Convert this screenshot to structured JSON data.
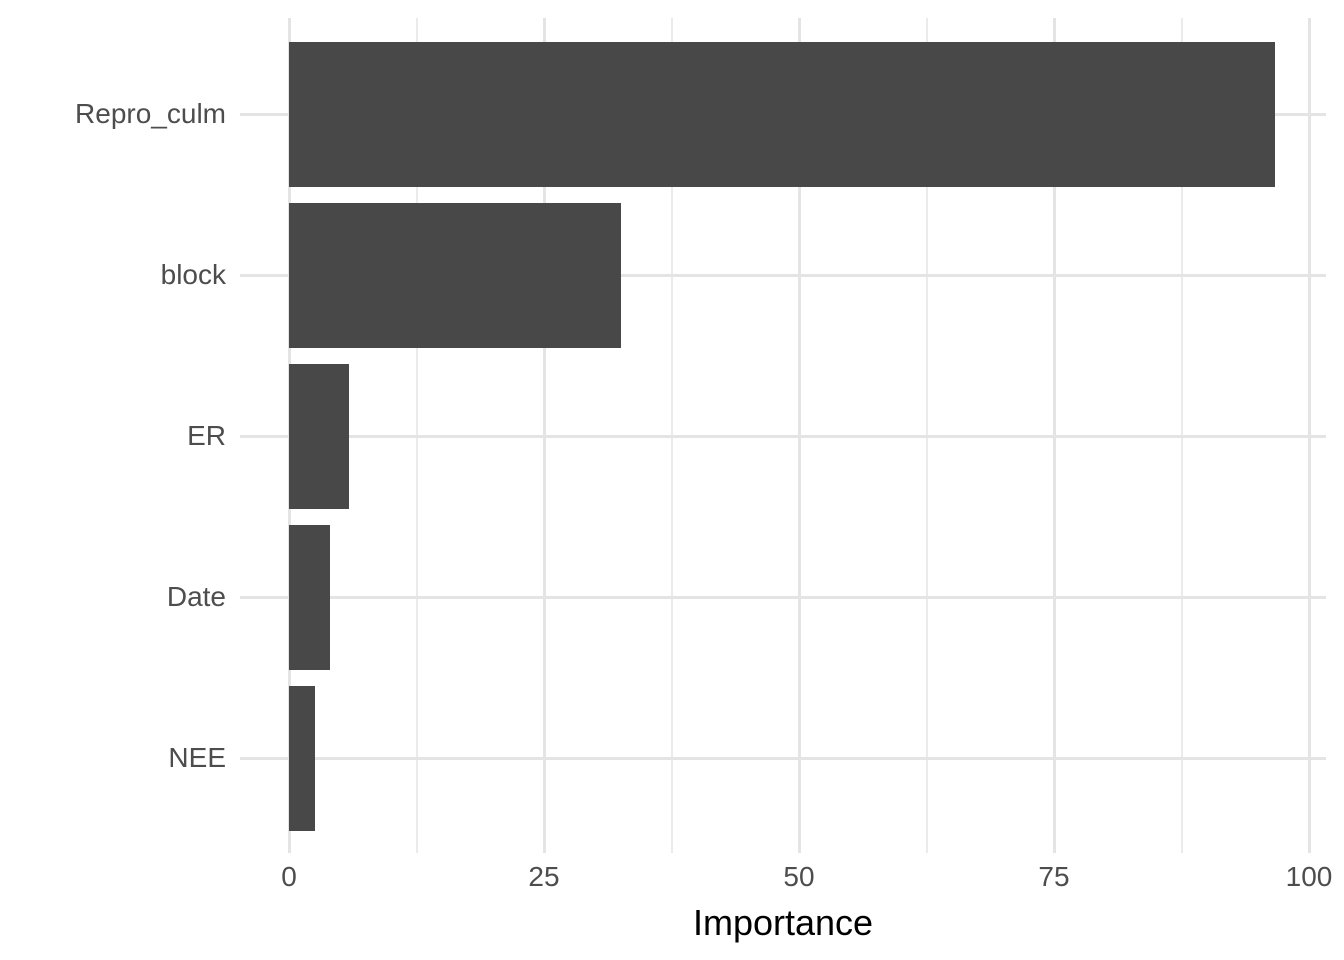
{
  "chart_data": {
    "type": "bar",
    "orientation": "horizontal",
    "title": "",
    "xlabel": "Importance",
    "ylabel": "",
    "categories": [
      "Repro_culm",
      "block",
      "ER",
      "Date",
      "NEE"
    ],
    "values": [
      96.7,
      32.5,
      5.9,
      4.0,
      2.5
    ],
    "xlim": [
      0,
      100
    ],
    "x_ticks": [
      0,
      25,
      50,
      75,
      100
    ],
    "x_tick_labels": [
      "0",
      "25",
      "50",
      "75",
      "100"
    ],
    "x_minor_ticks": [
      12.5,
      37.5,
      62.5,
      87.5
    ],
    "grid": "major and minor vertical, major horizontal at category centers",
    "legend": "none",
    "colors": {
      "bar_fill": "#484848",
      "grid_major": "#e4e4e4",
      "grid_minor": "#ebebeb",
      "tick_label": "#4d4d4d",
      "axis_title": "#000000",
      "background": "#ffffff"
    }
  }
}
